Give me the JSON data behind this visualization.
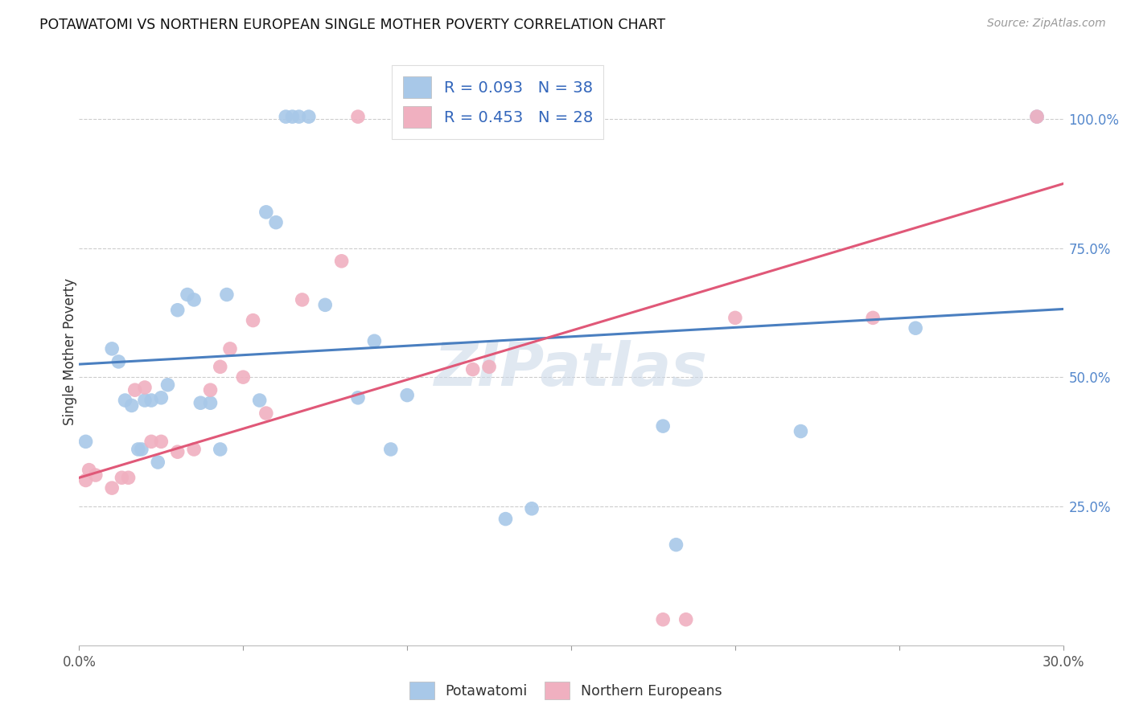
{
  "title": "POTAWATOMI VS NORTHERN EUROPEAN SINGLE MOTHER POVERTY CORRELATION CHART",
  "source": "Source: ZipAtlas.com",
  "ylabel": "Single Mother Poverty",
  "right_yticks": [
    "25.0%",
    "50.0%",
    "75.0%",
    "100.0%"
  ],
  "right_ytick_vals": [
    0.25,
    0.5,
    0.75,
    1.0
  ],
  "xlim": [
    0.0,
    0.3
  ],
  "ylim": [
    -0.02,
    1.12
  ],
  "legend_r1": "R = 0.093   N = 38",
  "legend_r2": "R = 0.453   N = 28",
  "blue_color": "#a8c8e8",
  "pink_color": "#f0b0c0",
  "blue_line_color": "#4a7fc0",
  "pink_line_color": "#e05878",
  "watermark": "ZIPatlas",
  "potawatomi_x": [
    0.002,
    0.01,
    0.012,
    0.014,
    0.016,
    0.018,
    0.019,
    0.02,
    0.022,
    0.024,
    0.025,
    0.027,
    0.03,
    0.033,
    0.035,
    0.037,
    0.04,
    0.043,
    0.045,
    0.055,
    0.057,
    0.06,
    0.063,
    0.065,
    0.067,
    0.07,
    0.075,
    0.085,
    0.09,
    0.095,
    0.1,
    0.13,
    0.138,
    0.178,
    0.182,
    0.22,
    0.255,
    0.292
  ],
  "potawatomi_y": [
    0.375,
    0.555,
    0.53,
    0.455,
    0.445,
    0.36,
    0.36,
    0.455,
    0.455,
    0.335,
    0.46,
    0.485,
    0.63,
    0.66,
    0.65,
    0.45,
    0.45,
    0.36,
    0.66,
    0.455,
    0.82,
    0.8,
    1.005,
    1.005,
    1.005,
    1.005,
    0.64,
    0.46,
    0.57,
    0.36,
    0.465,
    0.225,
    0.245,
    0.405,
    0.175,
    0.395,
    0.595,
    1.005
  ],
  "northern_x": [
    0.002,
    0.003,
    0.005,
    0.01,
    0.013,
    0.015,
    0.017,
    0.02,
    0.022,
    0.025,
    0.03,
    0.035,
    0.04,
    0.043,
    0.046,
    0.05,
    0.053,
    0.057,
    0.068,
    0.08,
    0.085,
    0.12,
    0.125,
    0.178,
    0.185,
    0.2,
    0.242,
    0.292
  ],
  "northern_y": [
    0.3,
    0.32,
    0.31,
    0.285,
    0.305,
    0.305,
    0.475,
    0.48,
    0.375,
    0.375,
    0.355,
    0.36,
    0.475,
    0.52,
    0.555,
    0.5,
    0.61,
    0.43,
    0.65,
    0.725,
    1.005,
    0.515,
    0.52,
    0.03,
    0.03,
    0.615,
    0.615,
    1.005
  ],
  "blue_line_x0": 0.0,
  "blue_line_y0": 0.525,
  "blue_line_x1": 0.3,
  "blue_line_y1": 0.632,
  "pink_line_x0": 0.0,
  "pink_line_y0": 0.305,
  "pink_line_x1": 0.3,
  "pink_line_y1": 0.875
}
